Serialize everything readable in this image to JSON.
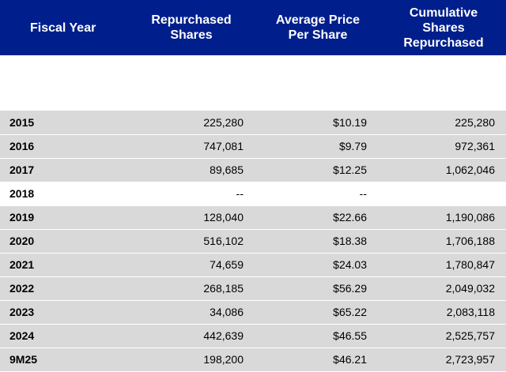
{
  "headers": {
    "fiscal_year": "Fiscal Year",
    "repurchased_line1": "Repurchased",
    "repurchased_line2": "Shares",
    "avg_price_line1": "Average Price",
    "avg_price_line2": "Per Share",
    "cumulative_line1": "Cumulative",
    "cumulative_line2": "Shares",
    "cumulative_line3": "Repurchased"
  },
  "rows": [
    {
      "year": "2015",
      "repurchased": "225,280",
      "avg_price": "$10.19",
      "cumulative": "225,280"
    },
    {
      "year": "2016",
      "repurchased": "747,081",
      "avg_price": "$9.79",
      "cumulative": "972,361"
    },
    {
      "year": "2017",
      "repurchased": "89,685",
      "avg_price": "$12.25",
      "cumulative": "1,062,046"
    },
    {
      "year": "2018",
      "repurchased": "--",
      "avg_price": "--",
      "cumulative": ""
    },
    {
      "year": "2019",
      "repurchased": "128,040",
      "avg_price": "$22.66",
      "cumulative": "1,190,086"
    },
    {
      "year": "2020",
      "repurchased": "516,102",
      "avg_price": "$18.38",
      "cumulative": "1,706,188"
    },
    {
      "year": "2021",
      "repurchased": "74,659",
      "avg_price": "$24.03",
      "cumulative": "1,780,847"
    },
    {
      "year": "2022",
      "repurchased": "268,185",
      "avg_price": "$56.29",
      "cumulative": "2,049,032"
    },
    {
      "year": "2023",
      "repurchased": "34,086",
      "avg_price": "$65.22",
      "cumulative": "2,083,118"
    },
    {
      "year": "2024",
      "repurchased": "442,639",
      "avg_price": "$46.55",
      "cumulative": "2,525,757"
    },
    {
      "year": "9M25",
      "repurchased": "198,200",
      "avg_price": "$46.21",
      "cumulative": "2,723,957"
    }
  ],
  "colors": {
    "header_bg": "#001f8c",
    "header_text": "#ffffff",
    "shaded_row": "#d9d9d9",
    "plain_row": "#ffffff"
  }
}
